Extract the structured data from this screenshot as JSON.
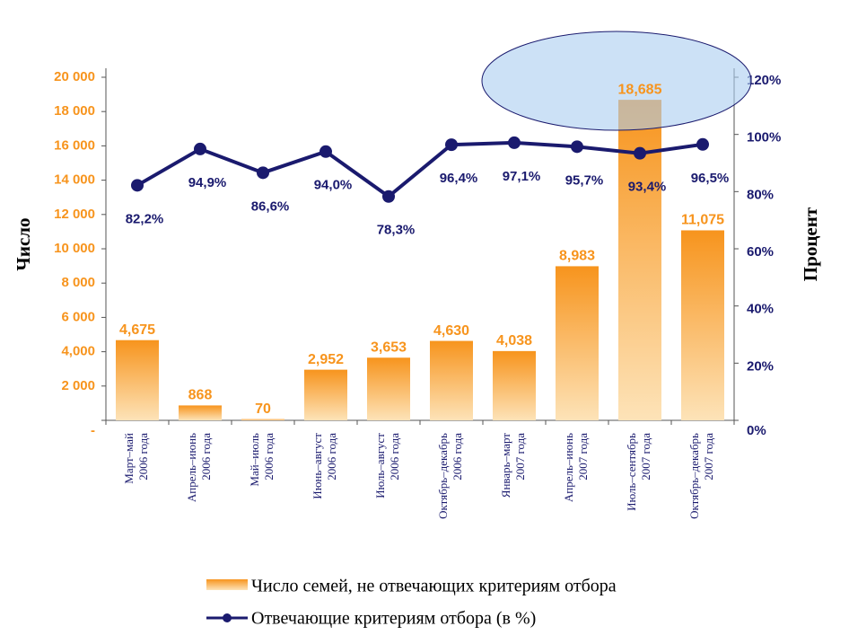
{
  "chart_data": {
    "type": "bar_line",
    "categories": [
      [
        "Март–май",
        "2006 года"
      ],
      [
        "Апрель–июнь",
        "2006 года"
      ],
      [
        "Май–июль",
        "2006 года"
      ],
      [
        "Июнь–август",
        "2006 года"
      ],
      [
        "Июль–август",
        "2006 года"
      ],
      [
        "Октябрь–декабрь",
        "2006 года"
      ],
      [
        "Январь–март",
        "2007 года"
      ],
      [
        "Апрель–июнь",
        "2007 года"
      ],
      [
        "Июль–сентябрь",
        "2007 года"
      ],
      [
        "Октябрь–декабрь",
        "2007 года"
      ]
    ],
    "ylabel": "Число",
    "y2label": "Процент",
    "ylim": [
      0,
      20000
    ],
    "yticks": [
      {
        "value": 0,
        "label": "-"
      },
      {
        "value": 2000,
        "label": "2 000"
      },
      {
        "value": 4000,
        "label": "4,000"
      },
      {
        "value": 6000,
        "label": "6 000"
      },
      {
        "value": 8000,
        "label": "8 000"
      },
      {
        "value": 10000,
        "label": "10 000"
      },
      {
        "value": 12000,
        "label": "12 000"
      },
      {
        "value": 14000,
        "label": "14 000"
      },
      {
        "value": 16000,
        "label": "16 000"
      },
      {
        "value": 18000,
        "label": "18 000"
      },
      {
        "value": 20000,
        "label": "20 000"
      }
    ],
    "y2lim": [
      0,
      120
    ],
    "y2ticks": [
      {
        "value": 0,
        "label": "0%"
      },
      {
        "value": 20,
        "label": "20%"
      },
      {
        "value": 40,
        "label": "40%"
      },
      {
        "value": 60,
        "label": "60%"
      },
      {
        "value": 80,
        "label": "80%"
      },
      {
        "value": 100,
        "label": "100%"
      },
      {
        "value": 120,
        "label": "120%"
      }
    ],
    "series": [
      {
        "name": "Число семей, не отвечающих критериям отбора",
        "type": "bar",
        "color": "#f7941d",
        "values": [
          4675,
          868,
          70,
          2952,
          3653,
          4630,
          4038,
          8983,
          18685,
          11075
        ],
        "value_labels": [
          "4,675",
          "868",
          "70",
          "2,952",
          "3,653",
          "4,630",
          "4,038",
          "8,983",
          "18,685",
          "11,075"
        ]
      },
      {
        "name": "Отвечающие критериям отбора (в %)",
        "type": "line",
        "axis": "y2",
        "color": "#1a1a6e",
        "values": [
          82.2,
          94.9,
          86.6,
          94.0,
          78.3,
          96.4,
          97.1,
          95.7,
          93.4,
          96.5
        ],
        "value_labels": [
          "82,2%",
          "94,9%",
          "86,6%",
          "94,0%",
          "78,3%",
          "96,4%",
          "97,1%",
          "95,7%",
          "93,4%",
          "96,5%"
        ]
      }
    ]
  }
}
